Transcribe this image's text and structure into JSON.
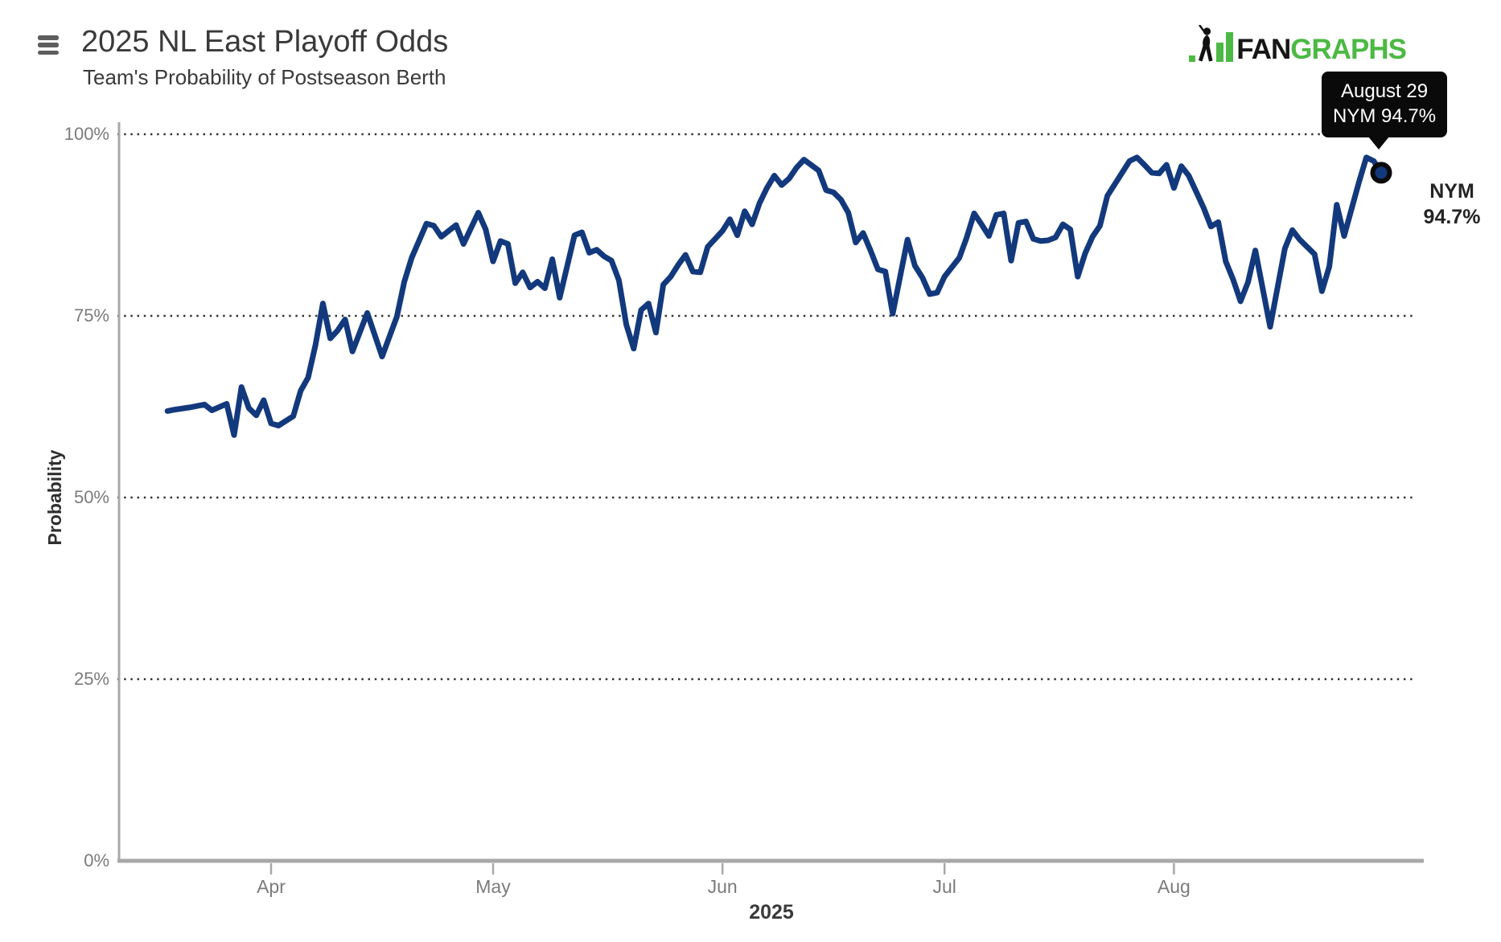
{
  "header": {
    "title": "2025 NL East Playoff Odds",
    "subtitle": "Team's Probability of Postseason Berth"
  },
  "logo": {
    "text_black": "FAN",
    "text_green": "GRAPHS",
    "green_color": "#4CB944",
    "black_color": "#161616"
  },
  "tooltip": {
    "line1": "August 29",
    "line2": "NYM 94.7%",
    "bg_color": "#0A0A0A"
  },
  "endpoint_label": {
    "team": "NYM",
    "value": "94.7%"
  },
  "chart_data": {
    "type": "line",
    "title": "2025 NL East Playoff Odds",
    "subtitle": "Team's Probability of Postseason Berth",
    "ylabel": "Probability",
    "xlabel": "2025",
    "ylim": [
      0,
      100
    ],
    "grid": "horizontal-dotted",
    "legend_position": "none",
    "line_color": "#13397D",
    "marker_ring_color": "#0a0a0a",
    "grid_color": "#303030",
    "axis_color": "#a8a8a8",
    "y_ticks": [
      {
        "label": "100%",
        "value": 100
      },
      {
        "label": "75%",
        "value": 75
      },
      {
        "label": "50%",
        "value": 50
      },
      {
        "label": "25%",
        "value": 25
      },
      {
        "label": "0%",
        "value": 0
      }
    ],
    "x_ticks": [
      {
        "label": "Apr",
        "day": 14
      },
      {
        "label": "May",
        "day": 44
      },
      {
        "label": "Jun",
        "day": 75
      },
      {
        "label": "Jul",
        "day": 105
      },
      {
        "label": "Aug",
        "day": 136
      }
    ],
    "end_marker": {
      "date": "August 29",
      "team": "NYM",
      "value": 94.7
    },
    "series": [
      {
        "name": "NYM",
        "color": "#13397D",
        "points": [
          [
            "Mar 18",
            61.9
          ],
          [
            "Mar 19",
            62.1
          ],
          [
            "Mar 21",
            62.4
          ],
          [
            "Mar 23",
            62.8
          ],
          [
            "Mar 24",
            62.0
          ],
          [
            "Mar 26",
            62.9
          ],
          [
            "Mar 27",
            58.6
          ],
          [
            "Mar 28",
            65.2
          ],
          [
            "Mar 29",
            62.3
          ],
          [
            "Mar 30",
            61.3
          ],
          [
            "Mar 31",
            63.4
          ],
          [
            "Apr 1",
            60.2
          ],
          [
            "Apr 2",
            59.9
          ],
          [
            "Apr 4",
            61.2
          ],
          [
            "Apr 5",
            64.7
          ],
          [
            "Apr 6",
            66.5
          ],
          [
            "Apr 7",
            71.0
          ],
          [
            "Apr 8",
            76.7
          ],
          [
            "Apr 9",
            71.9
          ],
          [
            "Apr 10",
            73.0
          ],
          [
            "Apr 11",
            74.5
          ],
          [
            "Apr 12",
            70.1
          ],
          [
            "Apr 14",
            75.4
          ],
          [
            "Apr 16",
            69.4
          ],
          [
            "Apr 18",
            74.9
          ],
          [
            "Apr 19",
            79.7
          ],
          [
            "Apr 20",
            83.0
          ],
          [
            "Apr 22",
            87.7
          ],
          [
            "Apr 23",
            87.4
          ],
          [
            "Apr 24",
            85.9
          ],
          [
            "Apr 26",
            87.5
          ],
          [
            "Apr 27",
            84.9
          ],
          [
            "Apr 29",
            89.2
          ],
          [
            "Apr 30",
            86.9
          ],
          [
            "May 1",
            82.5
          ],
          [
            "May 2",
            85.3
          ],
          [
            "May 3",
            84.9
          ],
          [
            "May 4",
            79.5
          ],
          [
            "May 5",
            81.0
          ],
          [
            "May 6",
            78.9
          ],
          [
            "May 7",
            79.7
          ],
          [
            "May 8",
            78.8
          ],
          [
            "May 9",
            82.8
          ],
          [
            "May 10",
            77.5
          ],
          [
            "May 12",
            86.1
          ],
          [
            "May 13",
            86.5
          ],
          [
            "May 14",
            83.7
          ],
          [
            "May 15",
            84.1
          ],
          [
            "May 16",
            83.2
          ],
          [
            "May 17",
            82.6
          ],
          [
            "May 18",
            79.9
          ],
          [
            "May 19",
            73.8
          ],
          [
            "May 20",
            70.5
          ],
          [
            "May 21",
            75.8
          ],
          [
            "May 22",
            76.7
          ],
          [
            "May 23",
            72.7
          ],
          [
            "May 24",
            79.3
          ],
          [
            "May 25",
            80.4
          ],
          [
            "May 26",
            82.0
          ],
          [
            "May 27",
            83.4
          ],
          [
            "May 28",
            81.1
          ],
          [
            "May 29",
            81.0
          ],
          [
            "May 30",
            84.5
          ],
          [
            "May 31",
            85.6
          ],
          [
            "Jun 1",
            86.7
          ],
          [
            "Jun 2",
            88.3
          ],
          [
            "Jun 3",
            86.1
          ],
          [
            "Jun 4",
            89.4
          ],
          [
            "Jun 5",
            87.6
          ],
          [
            "Jun 6",
            90.5
          ],
          [
            "Jun 7",
            92.6
          ],
          [
            "Jun 8",
            94.3
          ],
          [
            "Jun 9",
            93.0
          ],
          [
            "Jun 10",
            93.9
          ],
          [
            "Jun 11",
            95.4
          ],
          [
            "Jun 12",
            96.5
          ],
          [
            "Jun 14",
            95.0
          ],
          [
            "Jun 15",
            92.3
          ],
          [
            "Jun 16",
            92.0
          ],
          [
            "Jun 17",
            91.0
          ],
          [
            "Jun 18",
            89.2
          ],
          [
            "Jun 19",
            85.1
          ],
          [
            "Jun 20",
            86.4
          ],
          [
            "Jun 21",
            84.0
          ],
          [
            "Jun 22",
            81.4
          ],
          [
            "Jun 23",
            81.1
          ],
          [
            "Jun 24",
            75.3
          ],
          [
            "Jun 26",
            85.5
          ],
          [
            "Jun 27",
            81.9
          ],
          [
            "Jun 28",
            80.3
          ],
          [
            "Jun 29",
            78.0
          ],
          [
            "Jun 30",
            78.2
          ],
          [
            "Jul 1",
            80.4
          ],
          [
            "Jul 3",
            83.0
          ],
          [
            "Jul 4",
            85.8
          ],
          [
            "Jul 5",
            89.1
          ],
          [
            "Jul 6",
            87.6
          ],
          [
            "Jul 7",
            86.0
          ],
          [
            "Jul 8",
            88.9
          ],
          [
            "Jul 9",
            89.1
          ],
          [
            "Jul 10",
            82.6
          ],
          [
            "Jul 11",
            87.8
          ],
          [
            "Jul 12",
            88.0
          ],
          [
            "Jul 13",
            85.6
          ],
          [
            "Jul 14",
            85.3
          ],
          [
            "Jul 15",
            85.4
          ],
          [
            "Jul 16",
            85.8
          ],
          [
            "Jul 17",
            87.6
          ],
          [
            "Jul 18",
            86.9
          ],
          [
            "Jul 19",
            80.4
          ],
          [
            "Jul 20",
            83.6
          ],
          [
            "Jul 21",
            85.9
          ],
          [
            "Jul 22",
            87.4
          ],
          [
            "Jul 23",
            91.5
          ],
          [
            "Jul 25",
            94.7
          ],
          [
            "Jul 26",
            96.3
          ],
          [
            "Jul 27",
            96.8
          ],
          [
            "Jul 28",
            95.8
          ],
          [
            "Jul 29",
            94.7
          ],
          [
            "Jul 30",
            94.6
          ],
          [
            "Jul 31",
            95.8
          ],
          [
            "Aug 1",
            92.6
          ],
          [
            "Aug 2",
            95.6
          ],
          [
            "Aug 3",
            94.3
          ],
          [
            "Aug 4",
            92.1
          ],
          [
            "Aug 5",
            89.9
          ],
          [
            "Aug 6",
            87.3
          ],
          [
            "Aug 7",
            87.9
          ],
          [
            "Aug 8",
            82.5
          ],
          [
            "Aug 9",
            80.0
          ],
          [
            "Aug 10",
            77.0
          ],
          [
            "Aug 11",
            79.6
          ],
          [
            "Aug 12",
            84.0
          ],
          [
            "Aug 14",
            73.5
          ],
          [
            "Aug 16",
            84.3
          ],
          [
            "Aug 17",
            86.8
          ],
          [
            "Aug 18",
            85.5
          ],
          [
            "Aug 20",
            83.5
          ],
          [
            "Aug 21",
            78.4
          ],
          [
            "Aug 22",
            81.8
          ],
          [
            "Aug 23",
            90.3
          ],
          [
            "Aug 24",
            86.0
          ],
          [
            "Aug 25",
            89.7
          ],
          [
            "Aug 26",
            93.4
          ],
          [
            "Aug 27",
            96.8
          ],
          [
            "Aug 28",
            96.3
          ],
          [
            "Aug 29",
            94.7
          ]
        ]
      }
    ]
  }
}
